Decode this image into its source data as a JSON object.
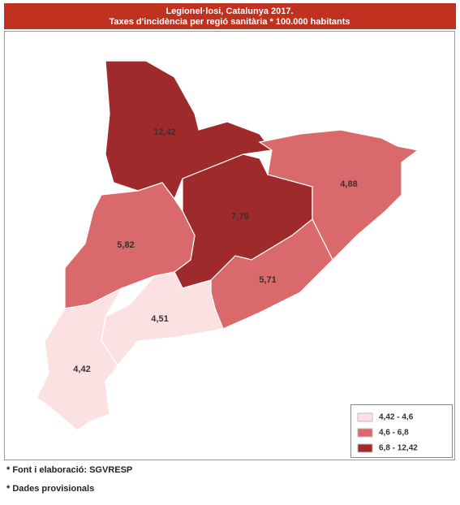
{
  "header": {
    "title": "Legionel·losi, Catalunya 2017.",
    "subtitle": "Taxes d'incidència per regió sanitària * 100.000 habitants"
  },
  "regions": [
    {
      "label": "12,42",
      "color": "#9f2a2c"
    },
    {
      "label": "7,79",
      "color": "#9f2a2c"
    },
    {
      "label": "4,88",
      "color": "#d9696b"
    },
    {
      "label": "5,82",
      "color": "#d9696b"
    },
    {
      "label": "5,71",
      "color": "#d9696b"
    },
    {
      "label": "4,51",
      "color": "#fce1e2"
    },
    {
      "label": "4,42",
      "color": "#fce1e2"
    }
  ],
  "legend": [
    {
      "label": "4,42 - 4,6",
      "color": "#fce1e2"
    },
    {
      "label": "4,6 - 6,8",
      "color": "#d9696b"
    },
    {
      "label": "6,8 - 12,42",
      "color": "#9f2a2c"
    }
  ],
  "footnotes": [
    "* Font i elaboració: SGVRESP",
    "* Dades provisionals"
  ]
}
